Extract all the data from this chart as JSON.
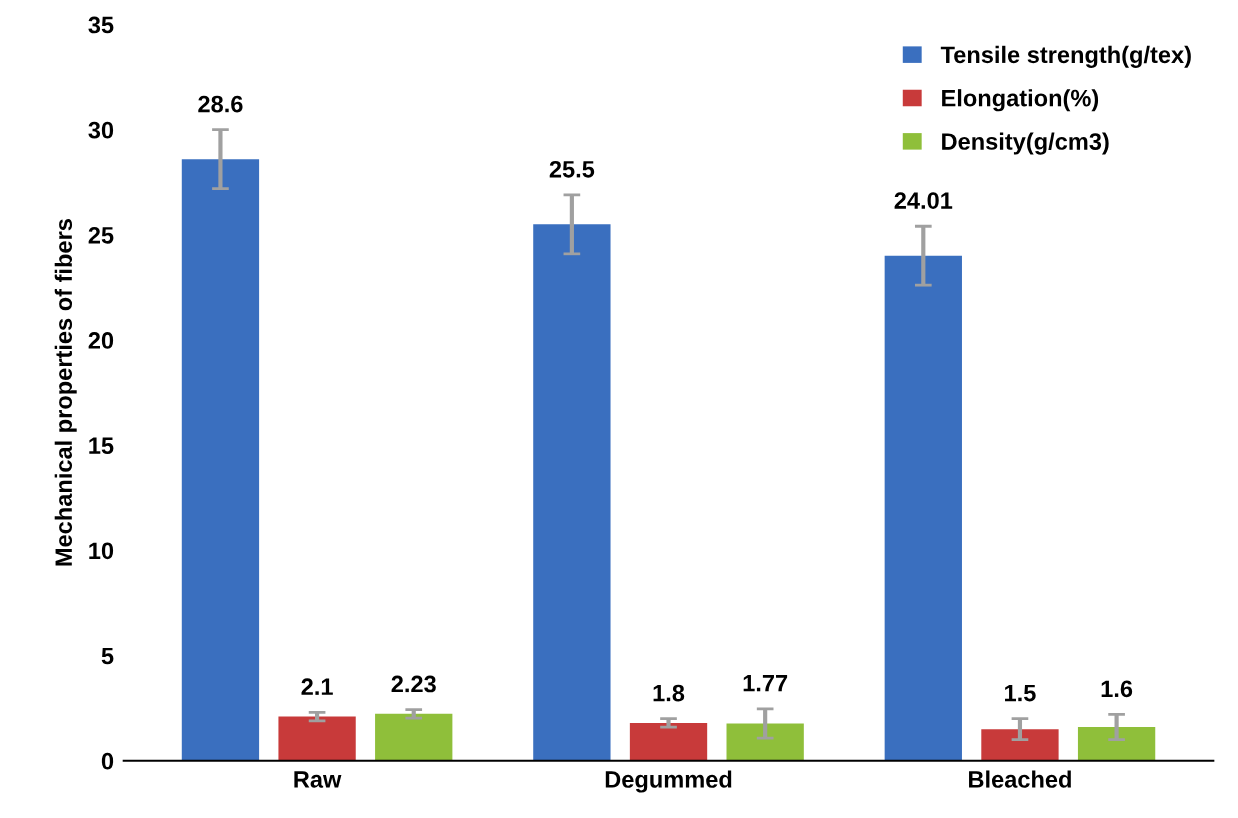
{
  "chart_data": {
    "type": "bar",
    "ylabel": "Mechanical properties of fibers",
    "categories": [
      "Raw",
      "Degummed",
      "Bleached"
    ],
    "series": [
      {
        "name": "Tensile strength(g/tex)",
        "color": "#3a6fbf",
        "values": [
          28.6,
          25.5,
          24.01
        ],
        "errors": [
          1.4,
          1.4,
          1.4
        ]
      },
      {
        "name": "Elongation(%)",
        "color": "#c83a3a",
        "values": [
          2.1,
          1.8,
          1.5
        ],
        "errors": [
          0.2,
          0.2,
          0.5
        ]
      },
      {
        "name": "Density(g/cm3)",
        "color": "#8fbf3a",
        "values": [
          2.23,
          1.77,
          1.6
        ],
        "errors": [
          0.2,
          0.7,
          0.6
        ]
      }
    ],
    "ylim": [
      0,
      35
    ],
    "yticks": [
      0,
      5,
      10,
      15,
      20,
      25,
      30,
      35
    ],
    "data_labels": true,
    "legend": "top right",
    "grid": false
  }
}
